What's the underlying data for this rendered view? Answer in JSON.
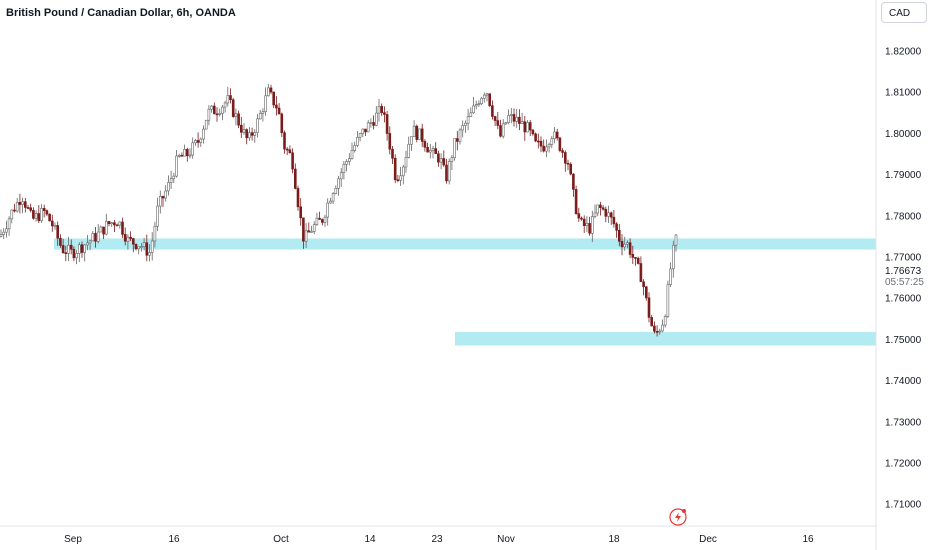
{
  "header": {
    "title": "British Pound / Canadian Dollar, 6h, OANDA",
    "currency": "CAD"
  },
  "price_axis": {
    "last_price": "1.76673",
    "countdown": "05:57:25"
  },
  "colors": {
    "up": "#656565",
    "down": "#7a1c1c",
    "zone": "#b2ebf2",
    "axis": "#131722"
  },
  "icons": [
    "lightning-icon"
  ],
  "chart_data": {
    "type": "candlestick",
    "title": "British Pound / Canadian Dollar, 6h, OANDA",
    "ylim": [
      1.7055,
      1.8255
    ],
    "yticks": [
      "1.82000",
      "1.81000",
      "1.80000",
      "1.79000",
      "1.78000",
      "1.77000",
      "1.76000",
      "1.75000",
      "1.74000",
      "1.73000",
      "1.72000",
      "1.71000"
    ],
    "xticks": [
      "Sep",
      "16",
      "Oct",
      "14",
      "23",
      "Nov",
      "18",
      "Dec",
      "16"
    ],
    "zones": [
      {
        "from": "Aug 29",
        "to": "Dec 31",
        "low": 1.7718,
        "high": 1.7745
      },
      {
        "from": "Oct 25",
        "to": "Dec 31",
        "low": 1.7485,
        "high": 1.7518
      }
    ],
    "close_path": [
      [
        0,
        1.775
      ],
      [
        12,
        1.781
      ],
      [
        22,
        1.785
      ],
      [
        32,
        1.779
      ],
      [
        44,
        1.781
      ],
      [
        52,
        1.778
      ],
      [
        62,
        1.772
      ],
      [
        72,
        1.771
      ],
      [
        84,
        1.773
      ],
      [
        96,
        1.775
      ],
      [
        108,
        1.778
      ],
      [
        118,
        1.779
      ],
      [
        128,
        1.774
      ],
      [
        140,
        1.773
      ],
      [
        150,
        1.771
      ],
      [
        158,
        1.782
      ],
      [
        168,
        1.787
      ],
      [
        178,
        1.794
      ],
      [
        188,
        1.795
      ],
      [
        198,
        1.798
      ],
      [
        208,
        1.805
      ],
      [
        218,
        1.806
      ],
      [
        228,
        1.808
      ],
      [
        238,
        1.803
      ],
      [
        248,
        1.798
      ],
      [
        258,
        1.803
      ],
      [
        268,
        1.81
      ],
      [
        278,
        1.806
      ],
      [
        284,
        1.797
      ],
      [
        292,
        1.794
      ],
      [
        300,
        1.78
      ],
      [
        304,
        1.774
      ],
      [
        312,
        1.777
      ],
      [
        322,
        1.779
      ],
      [
        332,
        1.786
      ],
      [
        342,
        1.791
      ],
      [
        352,
        1.796
      ],
      [
        362,
        1.8
      ],
      [
        372,
        1.803
      ],
      [
        382,
        1.806
      ],
      [
        390,
        1.797
      ],
      [
        396,
        1.789
      ],
      [
        404,
        1.793
      ],
      [
        412,
        1.801
      ],
      [
        422,
        1.799
      ],
      [
        432,
        1.795
      ],
      [
        440,
        1.794
      ],
      [
        446,
        1.789
      ],
      [
        454,
        1.797
      ],
      [
        462,
        1.801
      ],
      [
        470,
        1.804
      ],
      [
        478,
        1.808
      ],
      [
        486,
        1.811
      ],
      [
        494,
        1.804
      ],
      [
        500,
        1.799
      ],
      [
        508,
        1.804
      ],
      [
        518,
        1.803
      ],
      [
        528,
        1.801
      ],
      [
        536,
        1.797
      ],
      [
        544,
        1.797
      ],
      [
        552,
        1.8
      ],
      [
        560,
        1.797
      ],
      [
        568,
        1.793
      ],
      [
        574,
        1.784
      ],
      [
        580,
        1.778
      ],
      [
        590,
        1.777
      ],
      [
        598,
        1.782
      ],
      [
        606,
        1.781
      ],
      [
        614,
        1.778
      ],
      [
        620,
        1.774
      ],
      [
        628,
        1.773
      ],
      [
        636,
        1.768
      ],
      [
        642,
        1.765
      ],
      [
        648,
        1.757
      ],
      [
        654,
        1.751
      ],
      [
        658,
        1.752
      ],
      [
        664,
        1.755
      ],
      [
        668,
        1.762
      ],
      [
        672,
        1.77
      ],
      [
        676,
        1.774
      ],
      [
        678,
        1.767
      ]
    ]
  }
}
